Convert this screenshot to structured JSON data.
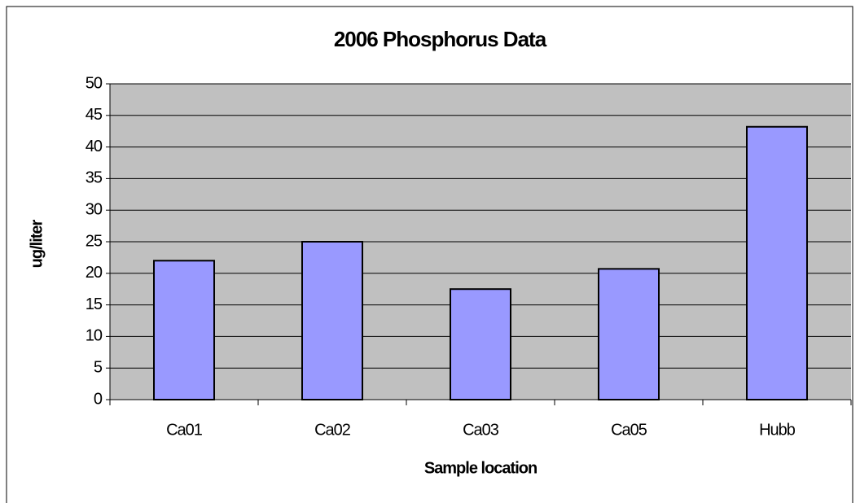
{
  "chart_data": {
    "type": "bar",
    "title": "2006 Phosphorus Data",
    "x_label": "Sample location",
    "y_label": "ug/liter",
    "categories": [
      "Ca01",
      "Ca02",
      "Ca03",
      "Ca05",
      "Hubb"
    ],
    "values": [
      22,
      25,
      17.5,
      20.7,
      43.2
    ],
    "color": "#9999ff",
    "ylim": [
      0,
      50
    ],
    "yticks": [
      0,
      5,
      10,
      15,
      20,
      25,
      30,
      35,
      40,
      45,
      50
    ],
    "grid": true
  }
}
